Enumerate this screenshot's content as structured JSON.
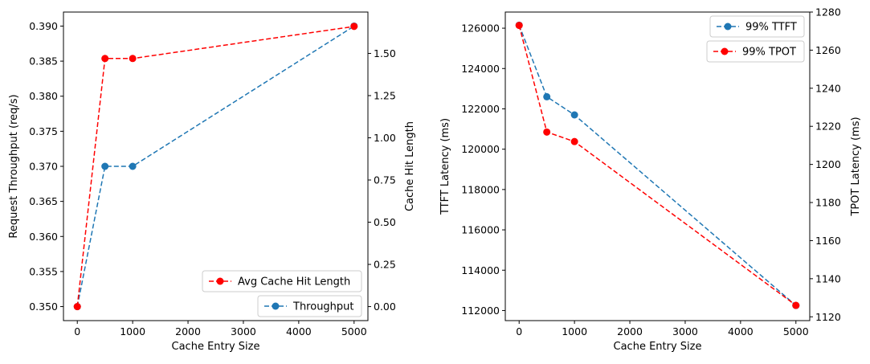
{
  "colors": {
    "throughput": "#1f77b4",
    "hit": "#ff0000",
    "ttft": "#1f77b4",
    "tpot": "#ff0000"
  },
  "chart_data": [
    {
      "type": "line",
      "xlabel": "Cache Entry Size",
      "ylabel": "Request Throughput (req/s)",
      "y2label": "Cache Hit Length",
      "x": [
        0,
        500,
        1000,
        5000
      ],
      "xlim": [
        -250,
        5250
      ],
      "ylim": [
        0.348,
        0.392
      ],
      "y2lim": [
        -0.083,
        1.745
      ],
      "xticks": [
        "0",
        "1000",
        "2000",
        "3000",
        "4000",
        "5000"
      ],
      "yticks": [
        "0.350",
        "0.355",
        "0.360",
        "0.365",
        "0.370",
        "0.375",
        "0.380",
        "0.385",
        "0.390"
      ],
      "y2ticks": [
        "0.00",
        "0.25",
        "0.50",
        "0.75",
        "1.00",
        "1.25",
        "1.50"
      ],
      "series": [
        {
          "name": "Throughput",
          "axis": "left",
          "values": [
            0.35,
            0.37,
            0.37,
            0.39
          ],
          "color": "#1f77b4",
          "linestyle": "dashed",
          "marker": "circle"
        },
        {
          "name": "Avg Cache Hit Length",
          "axis": "right",
          "values": [
            0.0,
            1.47,
            1.47,
            1.66
          ],
          "color": "#ff0000",
          "linestyle": "dashed",
          "marker": "circle"
        }
      ],
      "legends": [
        "lower right",
        "lower right"
      ]
    },
    {
      "type": "line",
      "xlabel": "Cache Entry Size",
      "ylabel": "TTFT Latency (ms)",
      "y2label": "TPOT Latency (ms)",
      "x": [
        0,
        500,
        1000,
        5000
      ],
      "xlim": [
        -250,
        5250
      ],
      "ylim": [
        111500,
        126800
      ],
      "y2lim": [
        1118,
        1280
      ],
      "xticks": [
        "0",
        "1000",
        "2000",
        "3000",
        "4000",
        "5000"
      ],
      "yticks": [
        "112000",
        "114000",
        "116000",
        "118000",
        "120000",
        "122000",
        "124000",
        "126000"
      ],
      "y2ticks": [
        "1120",
        "1140",
        "1160",
        "1180",
        "1200",
        "1220",
        "1240",
        "1260",
        "1280"
      ],
      "series": [
        {
          "name": "99% TTFT",
          "axis": "left",
          "values": [
            126150,
            122600,
            121700,
            112250
          ],
          "color": "#1f77b4",
          "linestyle": "dashed",
          "marker": "circle"
        },
        {
          "name": "99% TPOT",
          "axis": "right",
          "values": [
            1273,
            1217,
            1212,
            1126
          ],
          "color": "#ff0000",
          "linestyle": "dashed",
          "marker": "circle"
        }
      ],
      "legends": [
        "upper right",
        "upper right"
      ]
    }
  ]
}
